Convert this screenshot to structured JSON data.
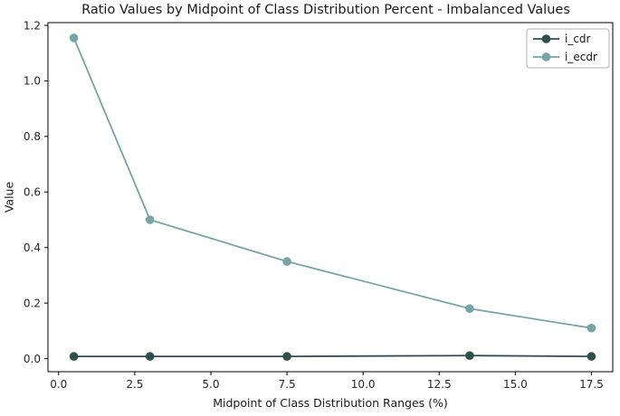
{
  "chart_data": {
    "type": "line",
    "title": "Ratio Values by Midpoint of Class Distribution Percent - Imbalanced Values",
    "xlabel": "Midpoint of Class Distribution Ranges (%)",
    "ylabel": "Value",
    "x": [
      0.5,
      3.0,
      7.5,
      13.5,
      17.5
    ],
    "series": [
      {
        "name": "i_cdr",
        "color": "#2f4f4f",
        "values": [
          0.008,
          0.008,
          0.008,
          0.011,
          0.008
        ]
      },
      {
        "name": "i_ecdr",
        "color": "#76a5a6",
        "values": [
          1.155,
          0.5,
          0.35,
          0.18,
          0.11
        ]
      }
    ],
    "xticks": [
      0.0,
      2.5,
      5.0,
      7.5,
      10.0,
      12.5,
      15.0,
      17.5
    ],
    "yticks": [
      0.0,
      0.2,
      0.4,
      0.6,
      0.8,
      1.0,
      1.2
    ],
    "xlim": [
      -0.35,
      18.2
    ],
    "ylim": [
      -0.047,
      1.21
    ],
    "grid": false,
    "legend_position": "upper right",
    "spine_color": "#000000",
    "tick_label_color": "#262626",
    "legend_border_color": "#b3b3b3"
  }
}
